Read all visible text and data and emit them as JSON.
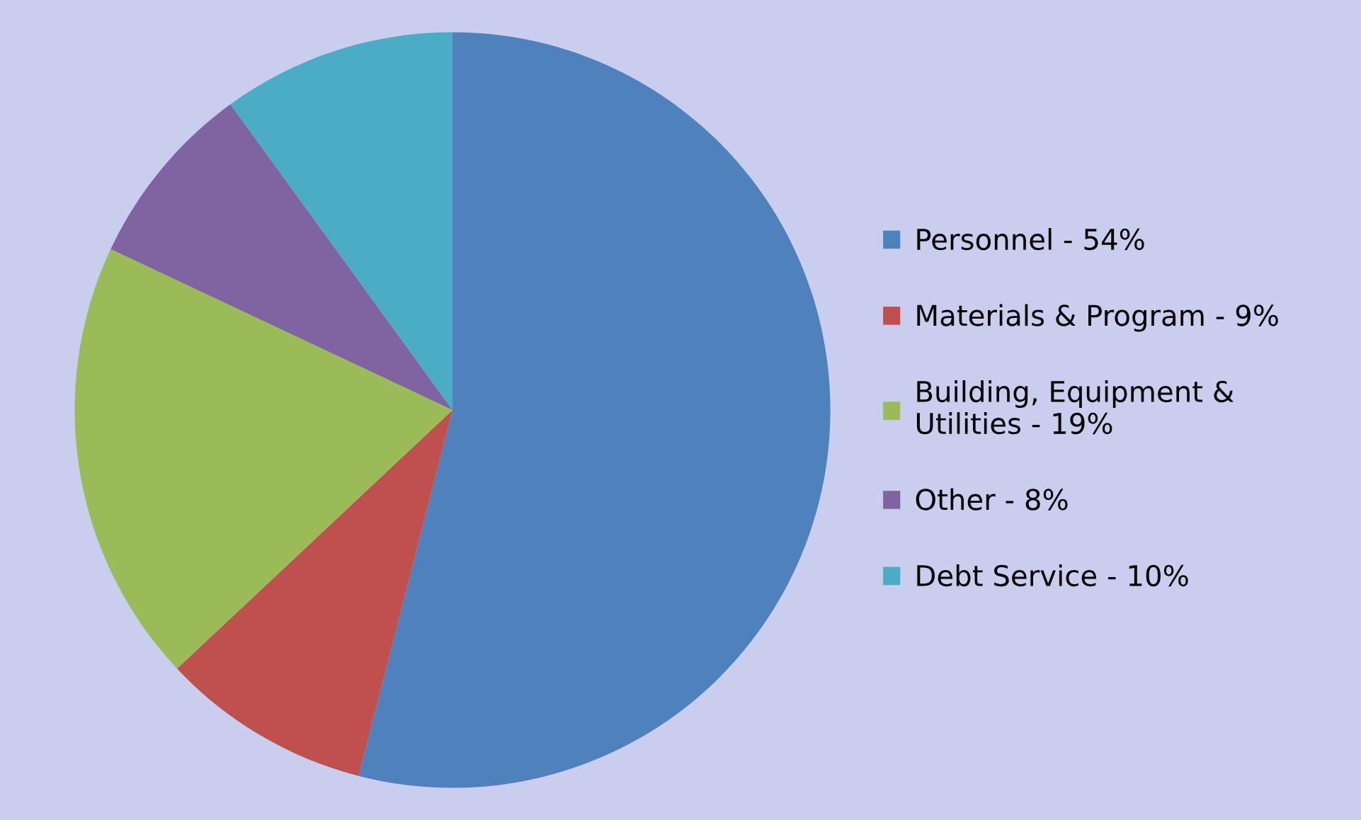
{
  "chart_data": {
    "type": "pie",
    "categories": [
      "Personnel - 54%",
      "Materials & Program - 9%",
      "Building, Equipment &\nUtilities - 19%",
      "Other - 8%",
      "Debt Service - 10%"
    ],
    "values": [
      54,
      9,
      19,
      8,
      10
    ],
    "colors": [
      "#4f81bd",
      "#c0504d",
      "#9bbb59",
      "#8064a2",
      "#4bacc6"
    ],
    "legend": "right"
  }
}
